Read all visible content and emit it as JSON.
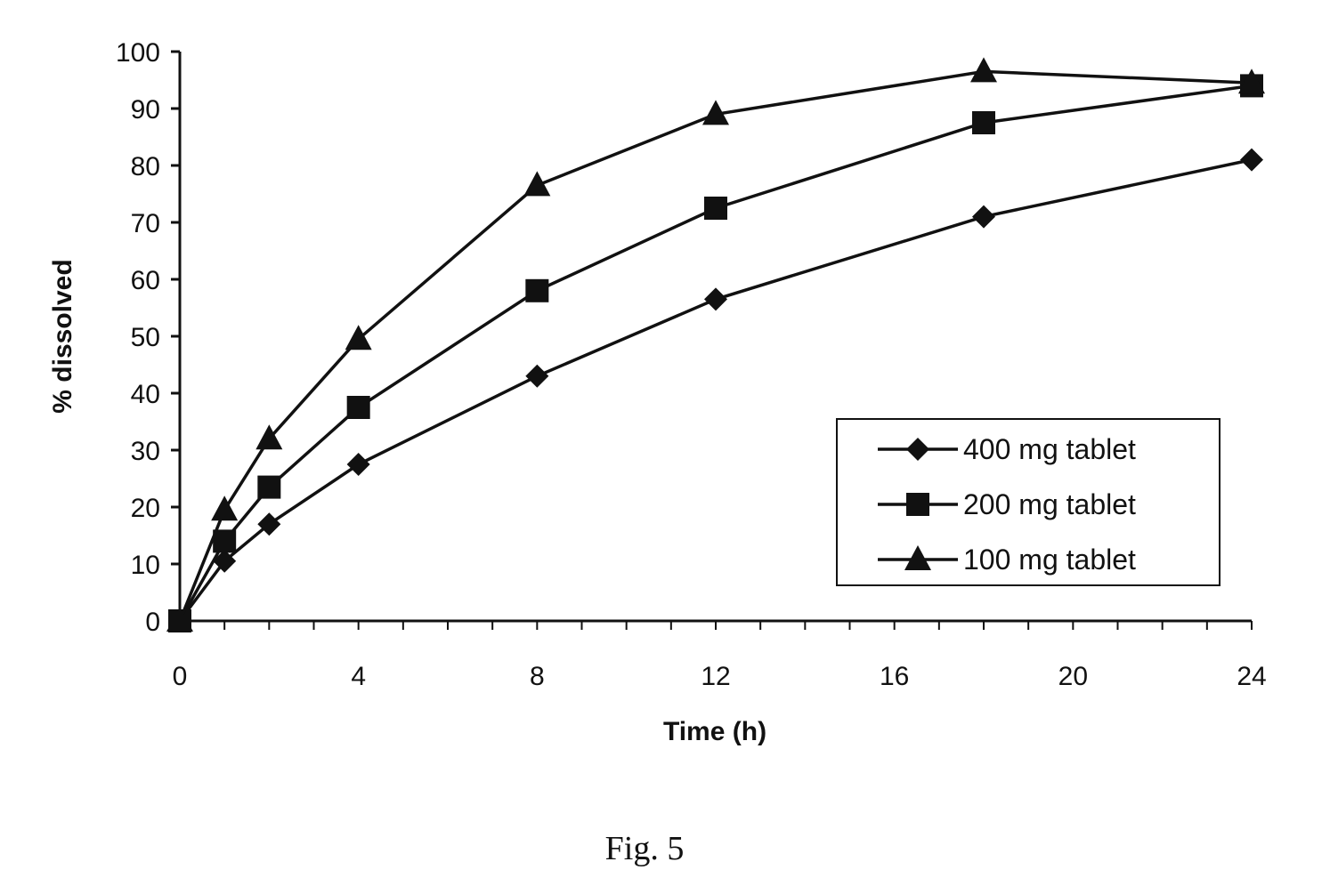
{
  "figure": {
    "caption": "Fig. 5"
  },
  "chart_data": {
    "type": "line",
    "xlabel": "Time (h)",
    "ylabel": "% dissolved",
    "xlim": [
      0,
      24
    ],
    "ylim": [
      0,
      100
    ],
    "x_ticks": [
      0,
      4,
      8,
      12,
      16,
      20,
      24
    ],
    "y_ticks": [
      0,
      10,
      20,
      30,
      40,
      50,
      60,
      70,
      80,
      90,
      100
    ],
    "grid": false,
    "legend_position": "right",
    "series": [
      {
        "name": "400 mg tablet",
        "marker": "diamond",
        "x": [
          0,
          1,
          2,
          4,
          8,
          12,
          18,
          24
        ],
        "y": [
          0,
          10.5,
          17,
          27.5,
          43,
          56.5,
          71,
          81
        ]
      },
      {
        "name": "200 mg tablet",
        "marker": "square",
        "x": [
          0,
          1,
          2,
          4,
          8,
          12,
          18,
          24
        ],
        "y": [
          0,
          14,
          23.5,
          37.5,
          58,
          72.5,
          87.5,
          94
        ]
      },
      {
        "name": "100 mg tablet",
        "marker": "triangle",
        "x": [
          0,
          1,
          2,
          4,
          8,
          12,
          18,
          24
        ],
        "y": [
          0,
          19.5,
          32,
          49.5,
          76.5,
          89,
          96.5,
          94.5
        ]
      }
    ]
  }
}
